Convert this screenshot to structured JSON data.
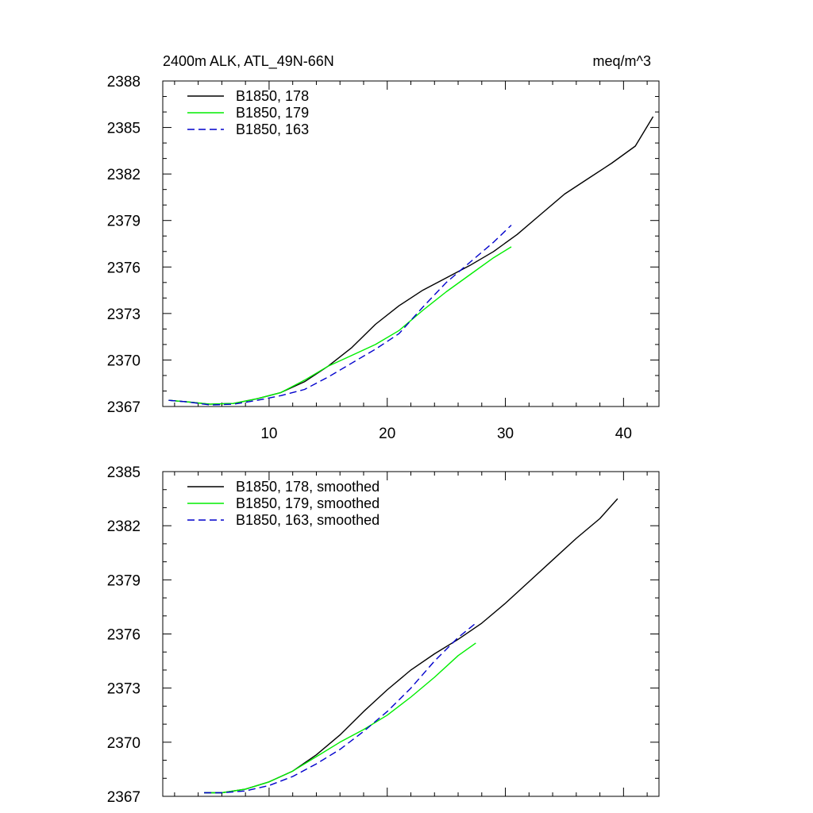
{
  "chart_data": [
    {
      "type": "line",
      "title_left": "2400m ALK, ATL_49N-66N",
      "title_right": "meq/m^3",
      "xlim": [
        1,
        43
      ],
      "ylim": [
        2367,
        2388
      ],
      "xticks": [
        10,
        20,
        30,
        40
      ],
      "yticks": [
        2367,
        2370,
        2373,
        2376,
        2379,
        2382,
        2385,
        2388
      ],
      "show_xtick_labels": true,
      "legend_position": "top-left",
      "series": [
        {
          "name": "B1850, 178",
          "color": "#000000",
          "dash": "solid",
          "x": [
            1.5,
            3,
            5,
            7,
            9,
            11,
            13,
            15,
            17,
            19,
            21,
            23,
            25,
            27,
            29,
            31,
            33,
            35,
            37,
            39,
            41,
            42.5
          ],
          "y": [
            2367.4,
            2367.3,
            2367.15,
            2367.2,
            2367.5,
            2367.9,
            2368.6,
            2369.6,
            2370.8,
            2372.3,
            2373.5,
            2374.5,
            2375.3,
            2376.1,
            2377.0,
            2378.1,
            2379.4,
            2380.7,
            2381.7,
            2382.7,
            2383.8,
            2385.7
          ]
        },
        {
          "name": "B1850, 179",
          "color": "#00ee00",
          "dash": "solid",
          "x": [
            1.5,
            3,
            5,
            7,
            9,
            11,
            13,
            15,
            17,
            19,
            21,
            23,
            25,
            27,
            29,
            30.5
          ],
          "y": [
            2367.4,
            2367.3,
            2367.15,
            2367.2,
            2367.5,
            2367.9,
            2368.7,
            2369.6,
            2370.3,
            2371.0,
            2371.9,
            2373.2,
            2374.4,
            2375.5,
            2376.6,
            2377.3
          ]
        },
        {
          "name": "B1850, 163",
          "color": "#0000cc",
          "dash": "dashed",
          "x": [
            1.5,
            3,
            5,
            7,
            9,
            11,
            13,
            15,
            17,
            19,
            21,
            23,
            25,
            27,
            29,
            30.5
          ],
          "y": [
            2367.4,
            2367.3,
            2367.1,
            2367.15,
            2367.4,
            2367.7,
            2368.1,
            2368.9,
            2369.8,
            2370.7,
            2371.7,
            2373.4,
            2375.0,
            2376.3,
            2377.6,
            2378.7
          ]
        }
      ]
    },
    {
      "type": "line",
      "xlim": [
        1,
        43
      ],
      "ylim": [
        2367,
        2385
      ],
      "xticks": [
        10,
        20,
        30,
        40
      ],
      "yticks": [
        2367,
        2370,
        2373,
        2376,
        2379,
        2382,
        2385
      ],
      "show_xtick_labels": false,
      "legend_position": "top-left",
      "series": [
        {
          "name": "B1850, 178, smoothed",
          "color": "#000000",
          "dash": "solid",
          "x": [
            4.5,
            6,
            8,
            10,
            12,
            14,
            16,
            18,
            20,
            22,
            24,
            26,
            28,
            30,
            32,
            34,
            36,
            38,
            39.5
          ],
          "y": [
            2367.2,
            2367.2,
            2367.4,
            2367.8,
            2368.4,
            2369.3,
            2370.4,
            2371.7,
            2372.9,
            2374.0,
            2374.9,
            2375.7,
            2376.6,
            2377.7,
            2378.9,
            2380.1,
            2381.3,
            2382.4,
            2383.5
          ]
        },
        {
          "name": "B1850, 179, smoothed",
          "color": "#00ee00",
          "dash": "solid",
          "x": [
            4.5,
            6,
            8,
            10,
            12,
            14,
            16,
            18,
            20,
            22,
            24,
            26,
            27.5
          ],
          "y": [
            2367.2,
            2367.2,
            2367.4,
            2367.8,
            2368.4,
            2369.2,
            2370.0,
            2370.7,
            2371.5,
            2372.5,
            2373.6,
            2374.8,
            2375.5
          ]
        },
        {
          "name": "B1850, 163, smoothed",
          "color": "#0000cc",
          "dash": "dashed",
          "x": [
            4.5,
            6,
            8,
            10,
            12,
            14,
            16,
            18,
            20,
            22,
            24,
            26,
            27.5
          ],
          "y": [
            2367.2,
            2367.2,
            2367.3,
            2367.6,
            2368.1,
            2368.8,
            2369.6,
            2370.6,
            2371.7,
            2373.0,
            2374.5,
            2375.8,
            2376.6
          ]
        }
      ]
    }
  ]
}
